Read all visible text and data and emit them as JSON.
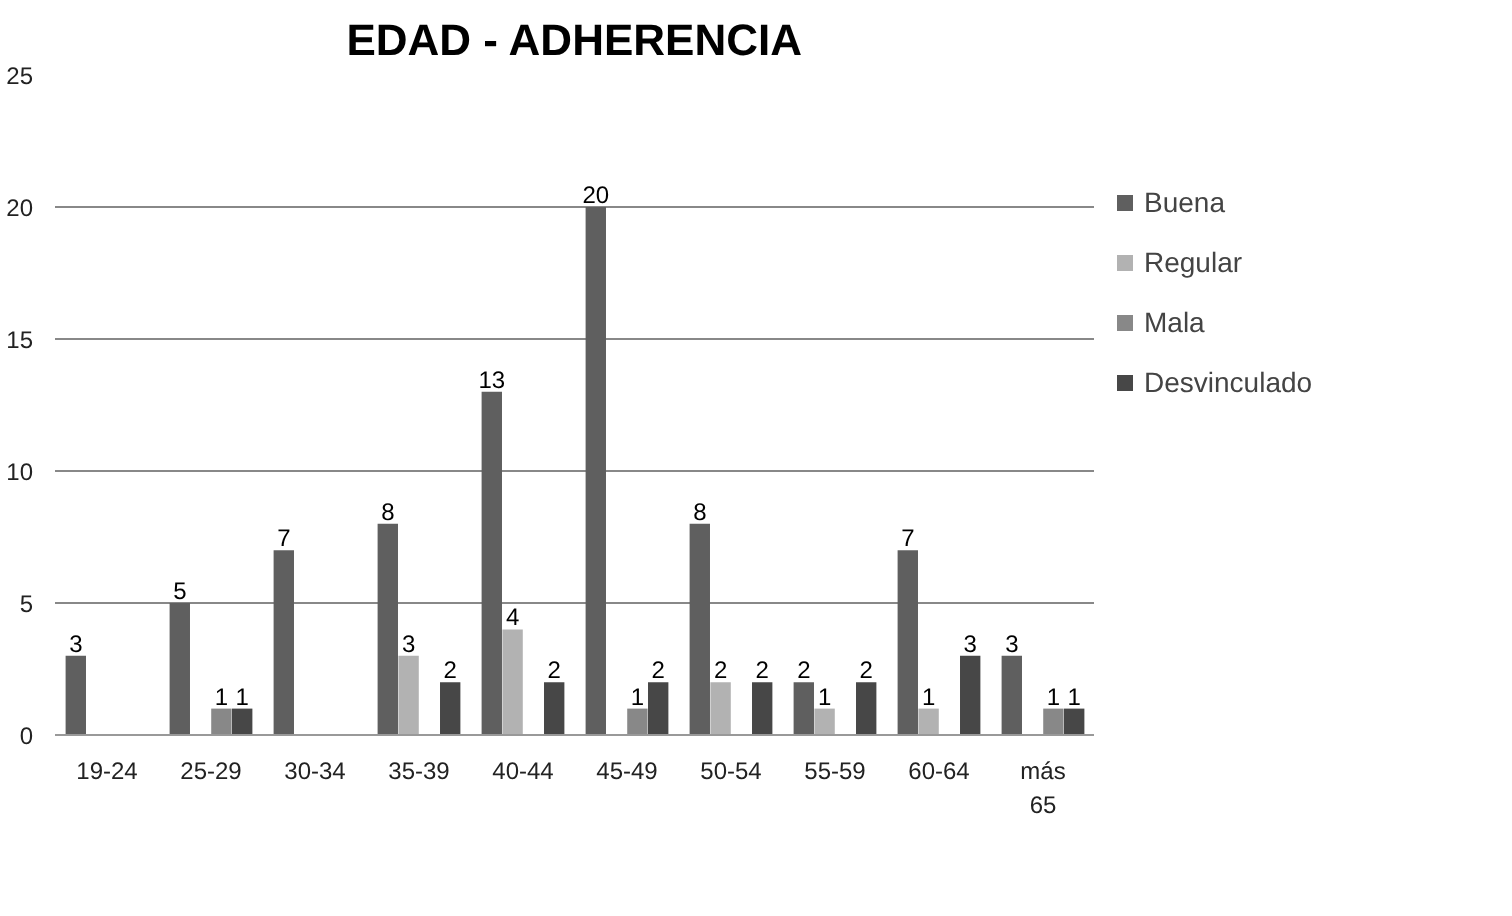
{
  "chart_data": {
    "type": "bar",
    "title": "EDAD - ADHERENCIA",
    "categories": [
      "19-24",
      "25-29",
      "30-34",
      "35-39",
      "40-44",
      "45-49",
      "50-54",
      "55-59",
      "60-64",
      "más 65"
    ],
    "series": [
      {
        "name": "Buena",
        "color": "#5f5f5f",
        "values": [
          3,
          5,
          7,
          8,
          13,
          20,
          8,
          2,
          7,
          3
        ]
      },
      {
        "name": "Regular",
        "color": "#b2b2b2",
        "values": [
          null,
          null,
          null,
          3,
          4,
          null,
          2,
          1,
          1,
          null
        ]
      },
      {
        "name": "Mala",
        "color": "#888888",
        "values": [
          null,
          1,
          null,
          null,
          null,
          1,
          null,
          null,
          null,
          1
        ]
      },
      {
        "name": "Desvinculado",
        "color": "#474747",
        "values": [
          null,
          1,
          null,
          2,
          2,
          2,
          2,
          2,
          3,
          1
        ]
      }
    ],
    "ylim": [
      0,
      25
    ],
    "yticks": [
      0,
      5,
      10,
      15,
      20,
      25
    ],
    "grid": "y",
    "legend": "right",
    "data_labels": true
  }
}
